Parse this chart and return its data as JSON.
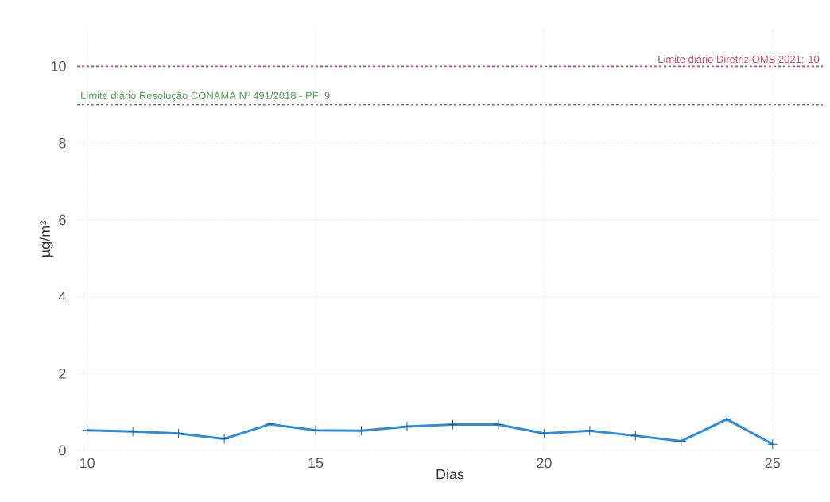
{
  "chart_data": {
    "type": "line",
    "xlabel": "Dias",
    "ylabel": "µg/m³",
    "x": [
      10,
      11,
      12,
      13,
      14,
      15,
      16,
      17,
      18,
      19,
      20,
      21,
      22,
      23,
      24,
      25
    ],
    "series": [
      {
        "color": "#2b8ce0",
        "values": [
          0.52,
          0.49,
          0.44,
          0.3,
          0.68,
          0.52,
          0.51,
          0.62,
          0.67,
          0.67,
          0.44,
          0.51,
          0.38,
          0.24,
          0.81,
          0.16
        ]
      }
    ],
    "xlim": [
      9.78,
      26.1
    ],
    "ylim": [
      0,
      11
    ],
    "xticks": [
      10,
      15,
      20,
      25
    ],
    "yticks": [
      0,
      2,
      4,
      6,
      8,
      10
    ],
    "grid": true,
    "marker": "cross",
    "line_style": "solid",
    "ref_lines": [
      {
        "axis": "y",
        "value": 10,
        "label": "Limite diário Diretriz OMS 2021: 10",
        "color": "#c8506a",
        "line_style": "dashed"
      },
      {
        "axis": "y",
        "value": 9,
        "label": "Limite diário Resolução CONAMA Nº 491/2018 - PF: 9",
        "color": "#5a9a5a",
        "line_style": "dashed"
      }
    ]
  }
}
